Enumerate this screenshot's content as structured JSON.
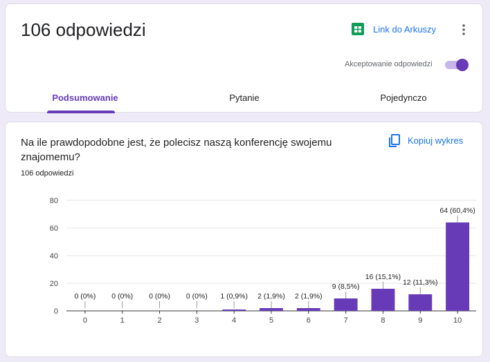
{
  "header": {
    "title": "106 odpowiedzi",
    "sheets_link": "Link do Arkuszy",
    "accepting_label": "Akceptowanie odpowiedzi",
    "tabs": [
      "Podsumowanie",
      "Pytanie",
      "Pojedynczo"
    ]
  },
  "question": {
    "text": "Na ile prawdopodobne jest, że polecisz naszą konferencję swojemu znajomemu?",
    "responses": "106 odpowiedzi",
    "copy_button": "Kopiuj wykres"
  },
  "chart_data": {
    "type": "bar",
    "categories": [
      "0",
      "1",
      "2",
      "3",
      "4",
      "5",
      "6",
      "7",
      "8",
      "9",
      "10"
    ],
    "values": [
      0,
      0,
      0,
      0,
      1,
      2,
      2,
      9,
      16,
      12,
      64
    ],
    "value_labels": [
      "0 (0%)",
      "0 (0%)",
      "0 (0%)",
      "0 (0%)",
      "1 (0,9%)",
      "2 (1,9%)",
      "2 (1,9%)",
      "9 (8,5%)",
      "16 (15,1%)",
      "12 (11,3%)",
      "64 (60,4%)"
    ],
    "color": "#673ab7",
    "ylim": [
      0,
      80
    ],
    "yticks": [
      0,
      20,
      40,
      60,
      80
    ],
    "grid": true
  }
}
